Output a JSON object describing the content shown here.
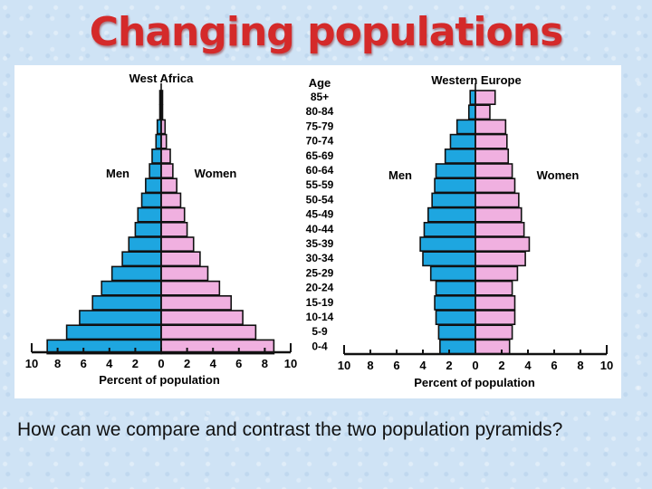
{
  "slide": {
    "title": "Changing populations",
    "caption": "How can we compare and contrast the two population pyramids?"
  },
  "colors": {
    "title": "#d42a2a",
    "men": "#1ea6e0",
    "women": "#f0b0e0",
    "outline": "#111111",
    "background": "#cfe3f5"
  },
  "age_axis": {
    "label": "Age",
    "groups": [
      "85+",
      "80-84",
      "75-79",
      "70-74",
      "65-69",
      "60-64",
      "55-59",
      "50-54",
      "45-49",
      "40-44",
      "35-39",
      "30-34",
      "25-29",
      "20-24",
      "15-19",
      "10-14",
      "5-9",
      "0-4"
    ]
  },
  "chart_data": [
    {
      "type": "bar",
      "subtype": "population-pyramid",
      "title": "West Africa",
      "xlabel": "Percent of population",
      "ylabel": "Age",
      "left_label": "Men",
      "right_label": "Women",
      "xlim": [
        -10,
        10
      ],
      "xticks": [
        10,
        8,
        6,
        4,
        2,
        0,
        2,
        4,
        6,
        8,
        10
      ],
      "categories": [
        "0-4",
        "5-9",
        "10-14",
        "15-19",
        "20-24",
        "25-29",
        "30-34",
        "35-39",
        "40-44",
        "45-49",
        "50-54",
        "55-59",
        "60-64",
        "65-69",
        "70-74",
        "75-79",
        "80-84",
        "85+"
      ],
      "series": [
        {
          "name": "Men",
          "values": [
            8.8,
            7.3,
            6.3,
            5.3,
            4.6,
            3.8,
            3.0,
            2.5,
            2.0,
            1.8,
            1.5,
            1.2,
            0.9,
            0.7,
            0.4,
            0.3,
            0.1,
            0.05
          ]
        },
        {
          "name": "Women",
          "values": [
            8.7,
            7.3,
            6.3,
            5.4,
            4.5,
            3.6,
            3.0,
            2.5,
            2.0,
            1.8,
            1.5,
            1.2,
            0.9,
            0.7,
            0.4,
            0.3,
            0.1,
            0.05
          ]
        }
      ],
      "grid": false
    },
    {
      "type": "bar",
      "subtype": "population-pyramid",
      "title": "Western Europe",
      "xlabel": "Percent of population",
      "ylabel": "Age",
      "left_label": "Men",
      "right_label": "Women",
      "xlim": [
        -10,
        10
      ],
      "xticks": [
        10,
        8,
        6,
        4,
        2,
        0,
        2,
        4,
        6,
        8,
        10
      ],
      "categories": [
        "0-4",
        "5-9",
        "10-14",
        "15-19",
        "20-24",
        "25-29",
        "30-34",
        "35-39",
        "40-44",
        "45-49",
        "50-54",
        "55-59",
        "60-64",
        "65-69",
        "70-74",
        "75-79",
        "80-84",
        "85+"
      ],
      "series": [
        {
          "name": "Men",
          "values": [
            2.7,
            2.8,
            3.0,
            3.1,
            3.0,
            3.4,
            4.0,
            4.2,
            3.9,
            3.6,
            3.3,
            3.1,
            3.0,
            2.3,
            1.9,
            1.4,
            0.5,
            0.4
          ]
        },
        {
          "name": "Women",
          "values": [
            2.6,
            2.8,
            3.0,
            3.0,
            2.8,
            3.2,
            3.8,
            4.1,
            3.7,
            3.5,
            3.3,
            3.0,
            2.8,
            2.5,
            2.4,
            2.3,
            1.1,
            1.5
          ]
        }
      ],
      "grid": false
    }
  ]
}
